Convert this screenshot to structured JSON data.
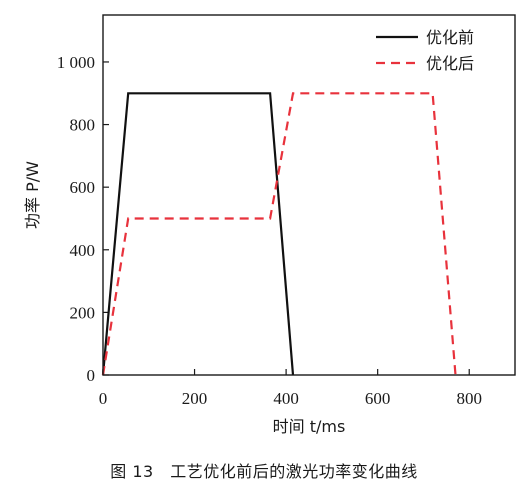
{
  "chart_data": {
    "type": "line",
    "xlabel": "时间 t/ms",
    "ylabel": "功率 P/W",
    "xlim": [
      0,
      900
    ],
    "ylim": [
      0,
      1150
    ],
    "xticks": [
      0,
      200,
      400,
      600,
      800
    ],
    "xtick_labels": [
      "0",
      "200",
      "400",
      "600",
      "800"
    ],
    "yticks": [
      0,
      200,
      400,
      600,
      800,
      1000
    ],
    "ytick_labels": [
      "0",
      "200",
      "400",
      "600",
      "800",
      "1 000"
    ],
    "grid": false,
    "legend_position": "top-right",
    "series": [
      {
        "name": "优化前",
        "color": "#111111",
        "style": "solid",
        "x": [
          0,
          55,
          365,
          415
        ],
        "y": [
          0,
          900,
          900,
          0
        ]
      },
      {
        "name": "优化后",
        "color": "#e8323c",
        "style": "dashed",
        "x": [
          0,
          55,
          365,
          415,
          720,
          770
        ],
        "y": [
          0,
          500,
          500,
          900,
          900,
          0
        ]
      }
    ]
  },
  "caption": "图 13　工艺优化前后的激光功率变化曲线"
}
